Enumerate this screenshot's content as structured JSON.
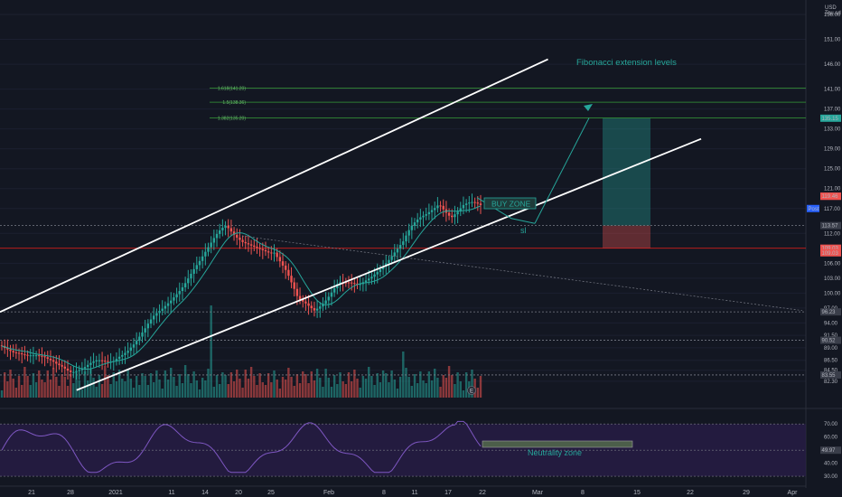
{
  "chart_data": {
    "type": "candlestick",
    "currency": "USD",
    "currency_sub": "Tou.sd",
    "price_axis": {
      "range": [
        79.0,
        158.0
      ],
      "ticks": [
        82.3,
        84.5,
        86.5,
        89.0,
        91.5,
        94.0,
        97.0,
        100.0,
        103.0,
        106.0,
        112.0,
        117.0,
        121.0,
        125.0,
        129.0,
        133.0,
        137.0,
        141.0,
        146.0,
        151.0,
        156.0
      ],
      "badges": [
        {
          "label": "135.15",
          "value": 135.15,
          "color": "#26a69a"
        },
        {
          "label": "119.48",
          "value": 119.48,
          "color": "#ef5350"
        },
        {
          "label": "119.46",
          "value": 119.46,
          "color": "#ef5350"
        },
        {
          "label": "Post",
          "value": 117.0,
          "color": "#2962ff"
        },
        {
          "label": "113.57",
          "value": 113.57,
          "color": "#3a3e4a"
        },
        {
          "label": "109.03",
          "value": 109.03,
          "color": "#ef5350"
        },
        {
          "label": "109.03",
          "value": 108.1,
          "color": "#ef5350"
        },
        {
          "label": "96.23",
          "value": 96.23,
          "color": "#3a3e4a"
        },
        {
          "label": "90.52",
          "value": 90.52,
          "color": "#3a3e4a"
        },
        {
          "label": "83.55",
          "value": 83.55,
          "color": "#3a3e4a"
        }
      ]
    },
    "time_axis": {
      "labels": [
        "21",
        "28",
        "2021",
        "11",
        "14",
        "20",
        "25",
        "Feb",
        "8",
        "11",
        "17",
        "22",
        "Mar",
        "8",
        "15",
        "22",
        "29",
        "Apr"
      ]
    },
    "candles": {
      "start": 89.5,
      "drift": [
        0,
        -0.2,
        -0.3,
        -0.4,
        -0.5,
        -0.4,
        -0.3,
        -0.3,
        -0.2,
        -0.1,
        0.1,
        0.3,
        0.5,
        0.6,
        0.7,
        0.7,
        0.6,
        0.5,
        0.4,
        0.2,
        0.1,
        0,
        -0.2,
        -0.4,
        -0.5,
        -0.4,
        -0.3,
        -0.2,
        0,
        0.2,
        0.5,
        0.8,
        1.0,
        1.1,
        1.0,
        0.8,
        0.6,
        0.4,
        0.3,
        0.2,
        0.1,
        0,
        -0.2,
        -0.3,
        -0.4,
        -0.3,
        -0.2,
        0,
        0.3,
        0.6,
        0.9,
        1.1,
        1.2,
        1.2,
        1.0,
        0.7,
        0.4,
        0.2,
        0,
        -0.2,
        -0.3,
        -0.4,
        -0.5,
        -0.5,
        -0.4,
        -0.2,
        0,
        0.2,
        0.4,
        0.6,
        0.9,
        1.2,
        1.5,
        1.8,
        2.1,
        2.3,
        2.4,
        2.3,
        2.1,
        1.8,
        1.4,
        1.0,
        0.7,
        0.5,
        0.3,
        0.2,
        0.1,
        0,
        -0.1,
        -0.2,
        -0.3,
        -0.4,
        -0.5,
        -0.6,
        -0.5,
        -0.3,
        -0.1,
        0.1,
        0.3,
        0.5,
        0.7,
        0.8,
        0.9,
        0.9,
        0.8,
        0.6,
        0.4,
        0.1,
        -0.2,
        -0.5,
        -0.8,
        -1.0,
        -1.1,
        -1.1,
        -1.0,
        -0.8,
        -0.6,
        -0.4,
        -0.2,
        0,
        0.2,
        0.4,
        0.5,
        0.6,
        0.6,
        0.5,
        0.3,
        0.1,
        -0.1,
        -0.3,
        -0.4,
        -0.5,
        -0.4,
        -0.2,
        0.1,
        0.4,
        0.8,
        1.2,
        1.6,
        2.0,
        2.3,
        2.5,
        2.6,
        2.5,
        2.2,
        1.8,
        1.4,
        1.0,
        0.6,
        0.3,
        0,
        -0.3,
        -0.5,
        -0.7,
        -0.8,
        -0.9,
        -0.9,
        -0.8,
        -0.6,
        -0.4,
        -0.1,
        0.2,
        0.5,
        0.7,
        0.8,
        0.7,
        0.5,
        0.2
      ]
    },
    "moving_average": {
      "color": "#26a69a"
    },
    "channel": {
      "color": "#ffffff",
      "upper": [
        {
          "t": 0.0,
          "p": 96.2
        },
        {
          "t": 0.68,
          "p": 147.0
        }
      ],
      "lower": [
        {
          "t": 0.095,
          "p": 80.5
        },
        {
          "t": 0.87,
          "p": 131.0
        }
      ]
    },
    "levels": [
      {
        "label": "1.618(141.20)",
        "value": 141.2
      },
      {
        "label": "1.5(138.36)",
        "value": 138.36
      },
      {
        "label": "1.382(135.20)",
        "value": 135.2
      }
    ],
    "annotations": {
      "fib_title": "Fibonacci extension levels",
      "buy_zone": "BUY ZONE",
      "sl": "sl",
      "neutrality": "Neutrality zone",
      "event_badge": "E"
    },
    "position": {
      "entry": 113.57,
      "target": 135.15,
      "stop": 109.03
    },
    "rsi": {
      "range": [
        28,
        75
      ],
      "ticks": [
        30.0,
        40.0,
        50.0,
        60.0,
        70.0
      ],
      "badge": "49.97",
      "badge_value": 49.97,
      "upper_band": 70,
      "lower_band": 30,
      "mid": 50
    },
    "colors": {
      "up": "#26a69a",
      "down": "#ef5350",
      "rsi_line": "#7e57c2",
      "rsi_band": "#2a1e4a",
      "fib": "#2e7d32",
      "ann": "#26a69a"
    }
  }
}
